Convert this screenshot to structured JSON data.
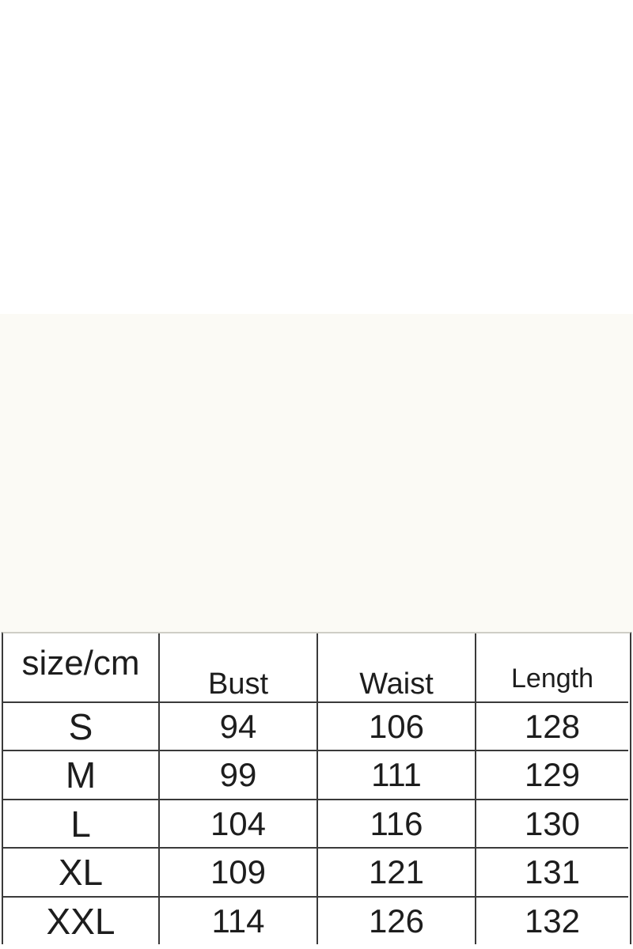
{
  "chart_data": {
    "type": "table",
    "title": "",
    "columns": [
      "size/cm",
      "Bust",
      "Waist",
      "Length"
    ],
    "rows": [
      [
        "S",
        94,
        106,
        128
      ],
      [
        "M",
        99,
        111,
        129
      ],
      [
        "L",
        104,
        116,
        130
      ],
      [
        "XL",
        109,
        121,
        131
      ],
      [
        "XXL",
        114,
        126,
        132
      ]
    ],
    "layout_hints": {
      "grid": "on",
      "header_row": true,
      "bottom_border": false
    }
  },
  "colors": {
    "grid_line": "#3a3a3a",
    "text": "#1d1d1d",
    "top_border": "#cfcec6",
    "band_bg": "#fbfaf5",
    "page_bg": "#ffffff"
  }
}
